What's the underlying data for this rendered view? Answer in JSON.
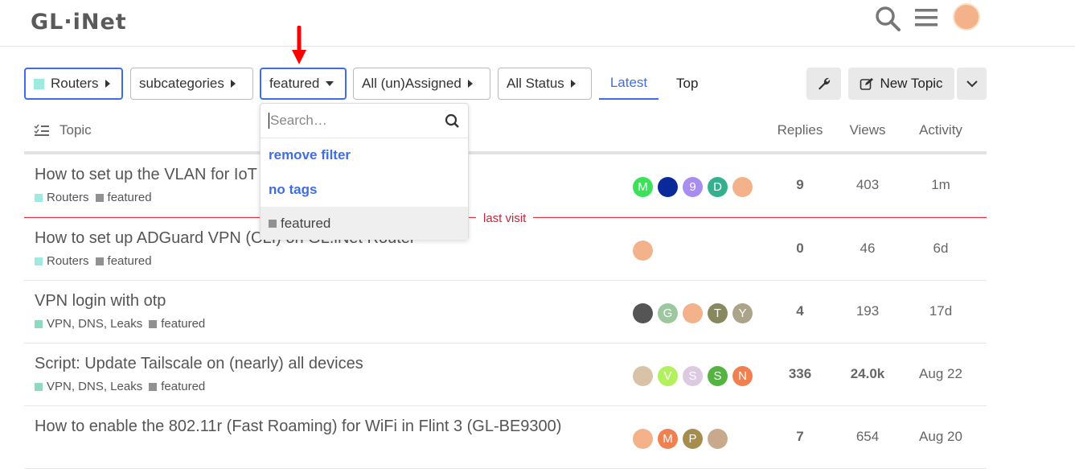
{
  "header": {
    "logo": "GL·iNet",
    "icons": [
      "search-icon",
      "menu-icon",
      "avatar"
    ]
  },
  "filters": {
    "category": "Routers",
    "category_color": "#9eeadf",
    "subcategories": "subcategories",
    "tag": "featured",
    "assigned": "All (un)Assigned",
    "status": "All Status"
  },
  "tabs": [
    {
      "label": "Latest",
      "active": true
    },
    {
      "label": "Top",
      "active": false
    }
  ],
  "actions": {
    "new_topic": "New Topic"
  },
  "table": {
    "headers": {
      "topic": "Topic",
      "replies": "Replies",
      "views": "Views",
      "activity": "Activity"
    },
    "last_visit": "last visit",
    "rows": [
      {
        "title": "How to set up the VLAN for IoT",
        "tags": [
          {
            "name": "Routers",
            "color": "#9eeadf"
          },
          {
            "name": "featured",
            "color": "#919191"
          }
        ],
        "avatars": [
          {
            "l": "M",
            "c": "#3de05b"
          },
          {
            "l": "",
            "c": "#0a2a9a"
          },
          {
            "l": "9",
            "c": "#a88cf0"
          },
          {
            "l": "D",
            "c": "#35b08f"
          },
          {
            "l": "",
            "c": "#f3b28a"
          }
        ],
        "replies": "9",
        "views": "403",
        "activity": "1m",
        "bold": false
      },
      {
        "title": "How to set up ADGuard VPN (CLI) on GL.iNet Router",
        "tags": [
          {
            "name": "Routers",
            "color": "#9eeadf"
          },
          {
            "name": "featured",
            "color": "#919191"
          }
        ],
        "avatars": [
          {
            "l": "",
            "c": "#f3b28a"
          }
        ],
        "replies": "0",
        "views": "46",
        "activity": "6d",
        "bold": false
      },
      {
        "title": "VPN login with otp",
        "tags": [
          {
            "name": "VPN, DNS, Leaks",
            "color": "#8fd9c4"
          },
          {
            "name": "featured",
            "color": "#919191"
          }
        ],
        "avatars": [
          {
            "l": "",
            "c": "#555"
          },
          {
            "l": "G",
            "c": "#9dc79f"
          },
          {
            "l": "",
            "c": "#f3b28a"
          },
          {
            "l": "T",
            "c": "#87885e"
          },
          {
            "l": "Y",
            "c": "#aca48a"
          }
        ],
        "replies": "4",
        "views": "193",
        "activity": "17d",
        "bold": false
      },
      {
        "title": "Script: Update Tailscale on (nearly) all devices",
        "tags": [
          {
            "name": "VPN, DNS, Leaks",
            "color": "#8fd9c4"
          },
          {
            "name": "featured",
            "color": "#919191"
          }
        ],
        "avatars": [
          {
            "l": "",
            "c": "#d9c3a8"
          },
          {
            "l": "V",
            "c": "#b2f060"
          },
          {
            "l": "S",
            "c": "#dcc9e2"
          },
          {
            "l": "S",
            "c": "#55b342"
          },
          {
            "l": "N",
            "c": "#f0804f"
          }
        ],
        "replies": "336",
        "views": "24.0k",
        "activity": "Aug 22",
        "bold": true
      },
      {
        "title": "How to enable the 802.11r (Fast Roaming) for WiFi in Flint 3 (GL-BE9300)",
        "tags": [],
        "avatars": [
          {
            "l": "",
            "c": "#f3b28a"
          },
          {
            "l": "M",
            "c": "#f0804f"
          },
          {
            "l": "P",
            "c": "#a68c4e"
          },
          {
            "l": "",
            "c": "#c9a98c"
          }
        ],
        "replies": "7",
        "views": "654",
        "activity": "Aug 20",
        "bold": false
      }
    ]
  },
  "dropdown": {
    "placeholder": "Search…",
    "items": [
      "remove filter",
      "no tags"
    ],
    "selected": "featured"
  },
  "colors": {
    "accent": "#3d6ee8",
    "last_visit": "#e45735",
    "annotation_arrow": "#ff0000"
  }
}
